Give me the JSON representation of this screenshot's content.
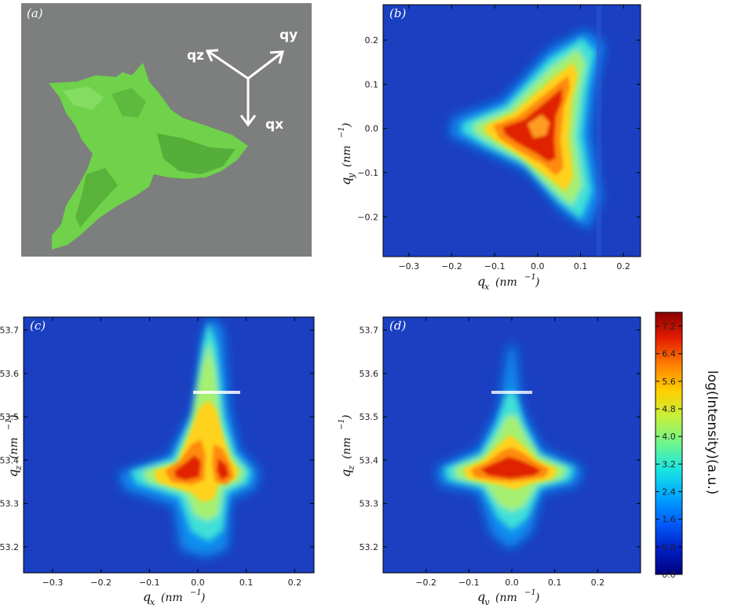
{
  "panel_a": {
    "label": "(a)",
    "background": "#7d7e7e",
    "shape_color": "#6fd24a",
    "shape_shadow": "#3f8f2b",
    "arrows": {
      "qz": "qz",
      "qy": "qy",
      "qx": "qx"
    }
  },
  "colormap": [
    "#00007f",
    "#0020c8",
    "#0060ff",
    "#00a8ff",
    "#19e6e0",
    "#6ef58c",
    "#c4f03c",
    "#ffd000",
    "#ff8000",
    "#e61c00",
    "#8c0000"
  ],
  "chart_data": [
    {
      "type": "heatmap",
      "panel": "(b)",
      "xlabel_var": "q",
      "xlabel_sub": "x",
      "xlabel_unit": "(nm",
      "ylabel_var": "q",
      "ylabel_sub": "y",
      "ylabel_unit": "(nm",
      "xlim": [
        -0.36,
        0.24
      ],
      "ylim": [
        -0.29,
        0.28
      ],
      "xticks": [
        -0.3,
        -0.2,
        -0.1,
        0.0,
        0.1,
        0.2
      ],
      "xtick_labels": [
        "−0.3",
        "−0.2",
        "−0.1",
        "0.0",
        "0.1",
        "0.2"
      ],
      "yticks": [
        -0.2,
        -0.1,
        0.0,
        0.1,
        0.2
      ],
      "ytick_labels": [
        "−0.2",
        "−0.1",
        "0.0",
        "0.1",
        "0.2"
      ],
      "peak_log_intensity": 7.6,
      "shape": "three-armed star centred near (0.02, 0.0)"
    },
    {
      "type": "heatmap",
      "panel": "(c)",
      "xlabel_var": "q",
      "xlabel_sub": "x",
      "xlabel_unit": "(nm",
      "ylabel_var": "q",
      "ylabel_sub": "z",
      "ylabel_unit": "(nm",
      "xlim": [
        -0.36,
        0.24
      ],
      "ylim": [
        53.14,
        53.73
      ],
      "xticks": [
        -0.3,
        -0.2,
        -0.1,
        0.0,
        0.1,
        0.2
      ],
      "xtick_labels": [
        "−0.3",
        "−0.2",
        "−0.1",
        "0.0",
        "0.1",
        "0.2"
      ],
      "yticks": [
        53.2,
        53.3,
        53.4,
        53.5,
        53.6,
        53.7
      ],
      "ytick_labels": [
        "53.2",
        "53.3",
        "53.4",
        "53.5",
        "53.6",
        "53.7"
      ],
      "peak_log_intensity": 7.6,
      "shape": "two lobes near qz 53.38 with vertical streak at qx 0.0"
    },
    {
      "type": "heatmap",
      "panel": "(d)",
      "xlabel_var": "q",
      "xlabel_sub": "y",
      "xlabel_unit": "(nm",
      "ylabel_var": "q",
      "ylabel_sub": "z",
      "ylabel_unit": "(nm",
      "xlim": [
        -0.3,
        0.3
      ],
      "ylim": [
        53.14,
        53.73
      ],
      "xticks": [
        -0.2,
        -0.1,
        0.0,
        0.1,
        0.2
      ],
      "xtick_labels": [
        "−0.2",
        "−0.1",
        "0.0",
        "0.1",
        "0.2"
      ],
      "yticks": [
        53.2,
        53.3,
        53.4,
        53.5,
        53.6,
        53.7
      ],
      "ytick_labels": [
        "53.2",
        "53.3",
        "53.4",
        "53.5",
        "53.6",
        "53.7"
      ],
      "peak_log_intensity": 7.6,
      "shape": "broad horizontal lobe near qz 53.38"
    }
  ],
  "colorbar": {
    "title": "log(Intensity)(a.u.)",
    "ticks": [
      0.0,
      0.8,
      1.6,
      2.4,
      3.2,
      4.0,
      4.8,
      5.6,
      6.4,
      7.2
    ],
    "tick_labels": [
      "0.0",
      "0.8",
      "1.6",
      "2.4",
      "3.2",
      "4.0",
      "4.8",
      "5.6",
      "6.4",
      "7.2"
    ],
    "vmin": 0.0,
    "vmax": 7.6
  }
}
